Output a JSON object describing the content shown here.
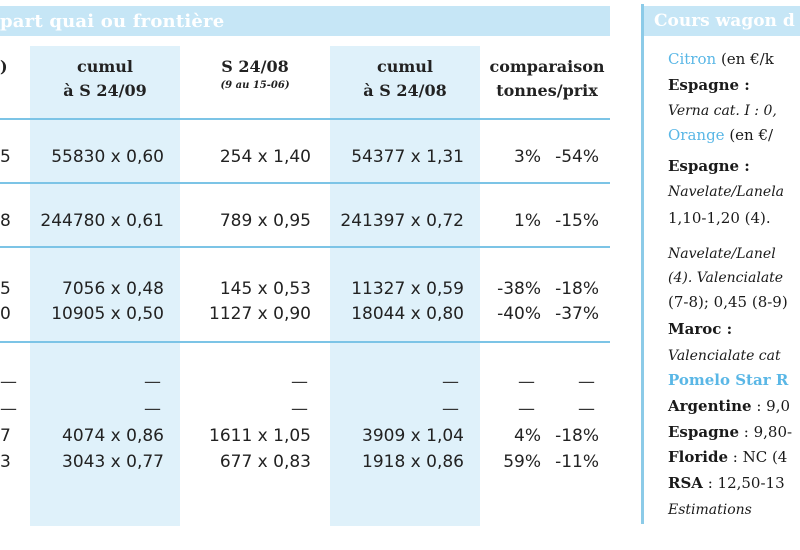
{
  "left_header": "part quai ou frontière",
  "columns": [
    {
      "line1": ")",
      "line2": ""
    },
    {
      "line1": "cumul",
      "line2": "à S 24/09"
    },
    {
      "line1": "S 24/08",
      "line2": "(9 au 15-06)"
    },
    {
      "line1": "cumul",
      "line2": "à S 24/08"
    },
    {
      "line1": "comparaison",
      "line2": "tonnes/prix"
    }
  ],
  "rows": [
    {
      "c0": "5",
      "c1": "55830 x 0,60",
      "c2": "254 x 1,40",
      "c3": "54377 x 1,31",
      "c4a": "3%",
      "c4b": "-54%"
    },
    {
      "c0": "8",
      "c1": "244780 x 0,61",
      "c2": "789 x 0,95",
      "c3": "241397 x 0,72",
      "c4a": "1%",
      "c4b": "-15%"
    },
    {
      "c0": "5",
      "c1": "7056 x 0,48",
      "c2": "145 x 0,53",
      "c3": "11327 x 0,59",
      "c4a": "-38%",
      "c4b": "-18%"
    },
    {
      "c0": "0",
      "c1": "10905 x 0,50",
      "c2": "1127 x 0,90",
      "c3": "18044 x 0,80",
      "c4a": "-40%",
      "c4b": "-37%"
    },
    {
      "c0": "7",
      "c1": "4074 x 0,86",
      "c2": "1611 x 1,05",
      "c3": "3909 x 1,04",
      "c4a": "4%",
      "c4b": "-18%"
    },
    {
      "c0": "3",
      "c1": "3043 x 0,77",
      "c2": "677 x 0,83",
      "c3": "1918 x 0,86",
      "c4a": "59%",
      "c4b": "-11%"
    }
  ],
  "dash": "—",
  "right_panel": {
    "header": "Cours wagon d",
    "lines": [
      {
        "type": "mixed",
        "blue": "Citron",
        "rest": " (en €/k"
      },
      {
        "type": "bold",
        "text": "Espagne :"
      },
      {
        "type": "italic",
        "text": "Verna cat. I : 0,"
      },
      {
        "type": "mixed",
        "blue": "Orange",
        "rest": " (en €/"
      },
      {
        "type": "bold",
        "text": "Espagne :"
      },
      {
        "type": "italic",
        "text": "Navelate/Lanela"
      },
      {
        "type": "plain",
        "text": "1,10-1,20 (4)."
      },
      {
        "type": "italic",
        "text": "Navelate/Lanel"
      },
      {
        "type": "italic",
        "text": "(4). Valencialate"
      },
      {
        "type": "plain",
        "text": "(7-8); 0,45 (8-9)"
      },
      {
        "type": "bold",
        "text": "Maroc :"
      },
      {
        "type": "italic",
        "text": "Valencialate cat"
      },
      {
        "type": "blue",
        "text": "Pomelo Star R"
      },
      {
        "type": "boldmixed",
        "bold": "Argentine",
        "rest": " : 9,0"
      },
      {
        "type": "boldmixed",
        "bold": "Espagne",
        "rest": " : 9,80-"
      },
      {
        "type": "boldmixed",
        "bold": "Floride",
        "rest": " : NC (4"
      },
      {
        "type": "boldmixed",
        "bold": "RSA",
        "rest": " : 12,50-13"
      },
      {
        "type": "italic",
        "text": "Estimations"
      }
    ]
  }
}
